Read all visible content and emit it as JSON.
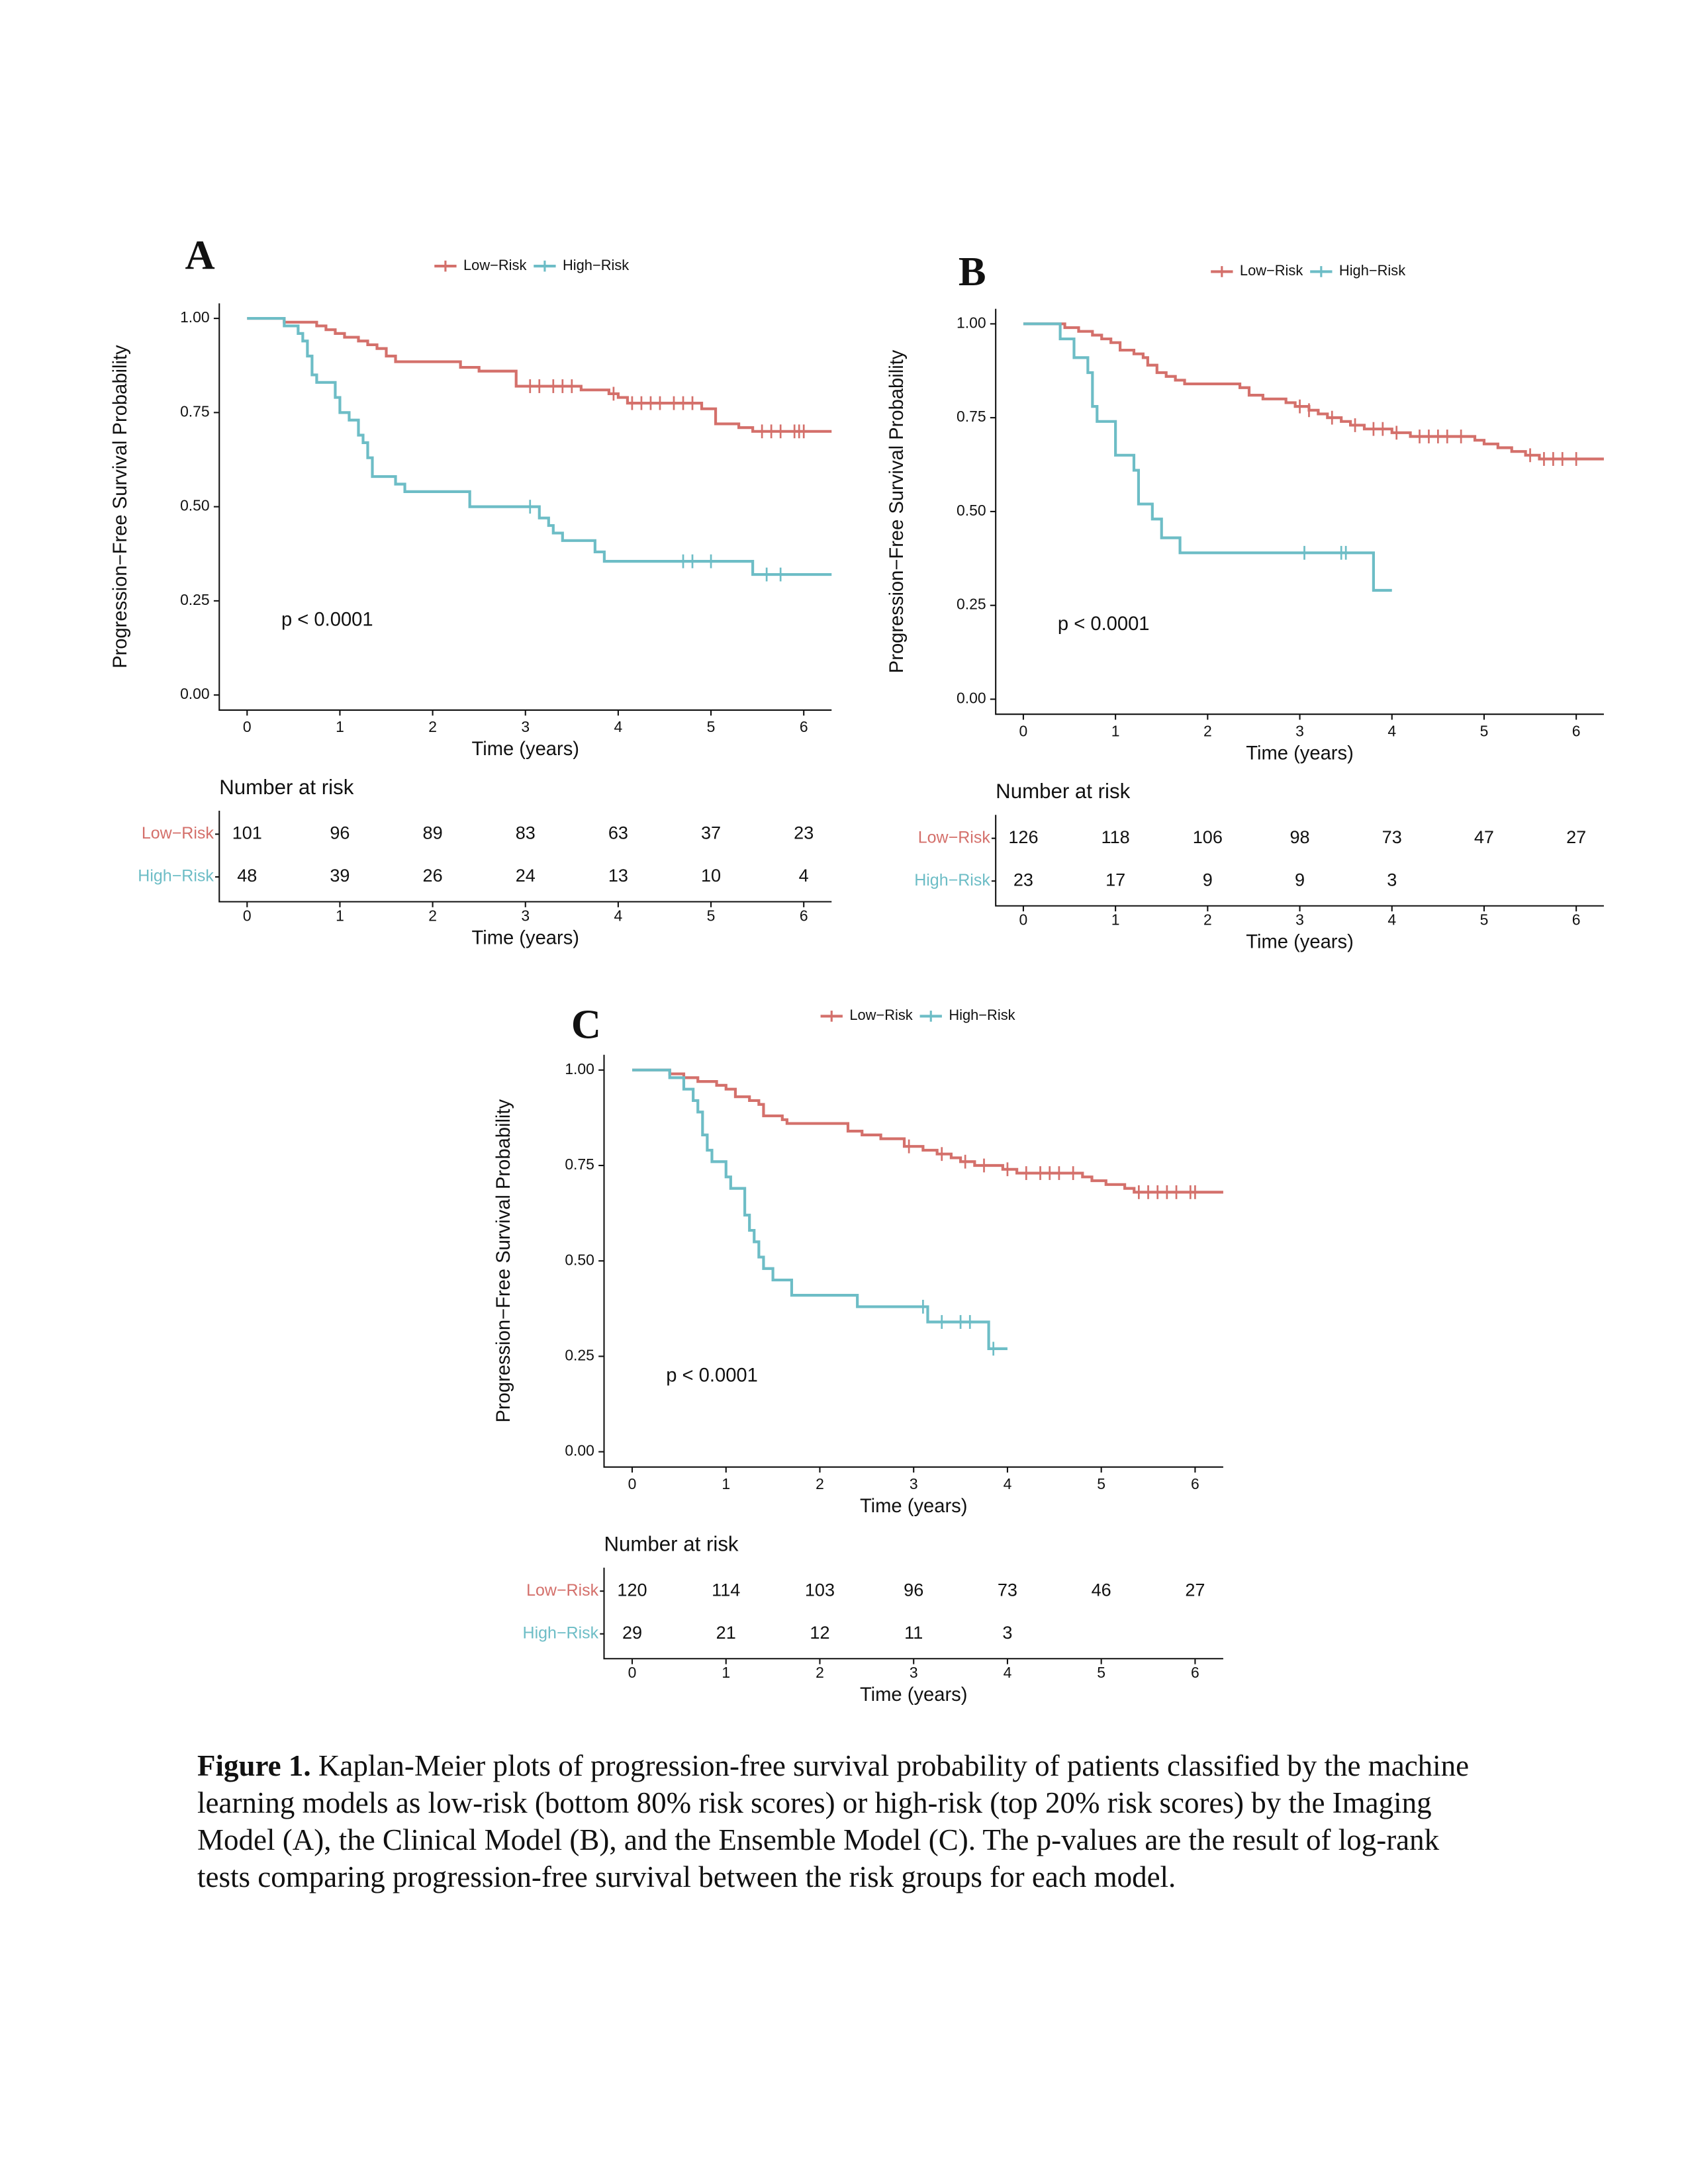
{
  "chart_data": [
    {
      "type": "step",
      "panel_label": "A",
      "p_value": "p < 0.0001",
      "xlabel": "Time (years)",
      "ylabel": "Progression−Free Survival Probability",
      "xlim": [
        -0.3,
        6.3
      ],
      "ylim": [
        -0.04,
        1.04
      ],
      "xticks": [
        0,
        1,
        2,
        3,
        4,
        5,
        6
      ],
      "yticks": [
        {
          "value": 0,
          "label": "0.00"
        },
        {
          "value": 0.25,
          "label": "0.25"
        },
        {
          "value": 0.5,
          "label": "0.50"
        },
        {
          "value": 0.75,
          "label": "0.75"
        },
        {
          "value": 1,
          "label": "1.00"
        }
      ],
      "series": [
        {
          "name": "Low−Risk",
          "color": "#d4706b",
          "x": [
            0,
            0.4,
            0.75,
            0.85,
            0.95,
            1.05,
            1.2,
            1.3,
            1.4,
            1.5,
            1.6,
            2.3,
            2.5,
            2.9,
            3.6,
            3.9,
            4.0,
            4.1,
            4.9,
            5.05,
            5.3,
            5.45,
            6.3
          ],
          "values": [
            1.0,
            0.99,
            0.98,
            0.97,
            0.96,
            0.95,
            0.94,
            0.93,
            0.92,
            0.9,
            0.885,
            0.87,
            0.86,
            0.82,
            0.81,
            0.8,
            0.79,
            0.775,
            0.76,
            0.72,
            0.71,
            0.7,
            0.7
          ],
          "censor_x": [
            3.05,
            3.15,
            3.3,
            3.4,
            3.5,
            3.95,
            4.15,
            4.25,
            4.35,
            4.45,
            4.6,
            4.7,
            4.8,
            5.55,
            5.65,
            5.75,
            5.9,
            5.95,
            6.0
          ],
          "censor_values": [
            0.82,
            0.82,
            0.82,
            0.82,
            0.82,
            0.8,
            0.775,
            0.775,
            0.775,
            0.775,
            0.775,
            0.775,
            0.775,
            0.7,
            0.7,
            0.7,
            0.7,
            0.7,
            0.7
          ]
        },
        {
          "name": "High−Risk",
          "color": "#6dbdc6",
          "x": [
            0,
            0.4,
            0.55,
            0.6,
            0.65,
            0.7,
            0.75,
            0.95,
            1.0,
            1.1,
            1.2,
            1.25,
            1.3,
            1.35,
            1.6,
            1.7,
            2.4,
            3.15,
            3.25,
            3.3,
            3.4,
            3.75,
            3.85,
            5.45,
            6.3
          ],
          "values": [
            1.0,
            0.98,
            0.96,
            0.94,
            0.9,
            0.85,
            0.83,
            0.79,
            0.75,
            0.73,
            0.69,
            0.67,
            0.63,
            0.58,
            0.56,
            0.54,
            0.5,
            0.47,
            0.45,
            0.43,
            0.41,
            0.38,
            0.355,
            0.32,
            0.32
          ],
          "censor_x": [
            3.05,
            4.7,
            4.8,
            5.0,
            5.6,
            5.75
          ],
          "censor_values": [
            0.5,
            0.355,
            0.355,
            0.355,
            0.32,
            0.32
          ]
        }
      ],
      "risk_table": {
        "title": "Number at risk",
        "xlabel": "Time (years)",
        "values": [
          [
            101,
            96,
            89,
            83,
            63,
            37,
            23
          ],
          [
            48,
            39,
            26,
            24,
            13,
            10,
            4
          ]
        ]
      }
    },
    {
      "type": "step",
      "panel_label": "B",
      "p_value": "p < 0.0001",
      "xlabel": "Time (years)",
      "ylabel": "Progression−Free Survival Probability",
      "xlim": [
        -0.3,
        6.3
      ],
      "ylim": [
        -0.04,
        1.04
      ],
      "xticks": [
        0,
        1,
        2,
        3,
        4,
        5,
        6
      ],
      "yticks": [
        {
          "value": 0,
          "label": "0.00"
        },
        {
          "value": 0.25,
          "label": "0.25"
        },
        {
          "value": 0.5,
          "label": "0.50"
        },
        {
          "value": 0.75,
          "label": "0.75"
        },
        {
          "value": 1,
          "label": "1.00"
        }
      ],
      "series": [
        {
          "name": "Low−Risk",
          "color": "#d4706b",
          "x": [
            0,
            0.45,
            0.6,
            0.75,
            0.85,
            0.95,
            1.05,
            1.2,
            1.3,
            1.35,
            1.45,
            1.55,
            1.65,
            1.75,
            2.35,
            2.45,
            2.6,
            2.85,
            2.95,
            3.1,
            3.2,
            3.3,
            3.45,
            3.55,
            3.7,
            4.0,
            4.2,
            4.9,
            5.0,
            5.15,
            5.3,
            5.45,
            5.6,
            6.3
          ],
          "values": [
            1.0,
            0.99,
            0.98,
            0.97,
            0.96,
            0.95,
            0.93,
            0.92,
            0.91,
            0.89,
            0.87,
            0.86,
            0.85,
            0.84,
            0.83,
            0.81,
            0.8,
            0.79,
            0.78,
            0.77,
            0.76,
            0.75,
            0.74,
            0.73,
            0.72,
            0.71,
            0.7,
            0.69,
            0.68,
            0.67,
            0.66,
            0.65,
            0.64,
            0.64
          ],
          "censor_x": [
            3.0,
            3.1,
            3.35,
            3.6,
            3.8,
            3.9,
            4.05,
            4.3,
            4.4,
            4.5,
            4.6,
            4.75,
            5.5,
            5.65,
            5.75,
            5.85,
            6.0
          ],
          "censor_values": [
            0.78,
            0.77,
            0.75,
            0.73,
            0.72,
            0.72,
            0.71,
            0.7,
            0.7,
            0.7,
            0.7,
            0.7,
            0.65,
            0.64,
            0.64,
            0.64,
            0.64
          ]
        },
        {
          "name": "High−Risk",
          "color": "#6dbdc6",
          "x": [
            0,
            0.4,
            0.55,
            0.7,
            0.75,
            0.8,
            1.0,
            1.2,
            1.25,
            1.4,
            1.5,
            1.7,
            3.8,
            4.0
          ],
          "values": [
            1.0,
            0.96,
            0.91,
            0.87,
            0.78,
            0.74,
            0.65,
            0.61,
            0.52,
            0.48,
            0.43,
            0.39,
            0.29,
            0.29
          ],
          "censor_x": [
            3.05,
            3.45,
            3.5
          ],
          "censor_values": [
            0.39,
            0.39,
            0.39
          ]
        }
      ],
      "risk_table": {
        "title": "Number at risk",
        "xlabel": "Time (years)",
        "values": [
          [
            126,
            118,
            106,
            98,
            73,
            47,
            27
          ],
          [
            23,
            17,
            9,
            9,
            3,
            null,
            null
          ]
        ]
      }
    },
    {
      "type": "step",
      "panel_label": "C",
      "p_value": "p < 0.0001",
      "xlabel": "Time (years)",
      "ylabel": "Progression−Free Survival Probability",
      "xlim": [
        -0.3,
        6.3
      ],
      "ylim": [
        -0.04,
        1.04
      ],
      "xticks": [
        0,
        1,
        2,
        3,
        4,
        5,
        6
      ],
      "yticks": [
        {
          "value": 0,
          "label": "0.00"
        },
        {
          "value": 0.25,
          "label": "0.25"
        },
        {
          "value": 0.5,
          "label": "0.50"
        },
        {
          "value": 0.75,
          "label": "0.75"
        },
        {
          "value": 1,
          "label": "1.00"
        }
      ],
      "series": [
        {
          "name": "Low−Risk",
          "color": "#d4706b",
          "x": [
            0,
            0.4,
            0.55,
            0.7,
            0.9,
            1.0,
            1.1,
            1.25,
            1.35,
            1.4,
            1.6,
            1.65,
            2.3,
            2.45,
            2.65,
            2.9,
            3.1,
            3.25,
            3.4,
            3.5,
            3.65,
            3.95,
            4.1,
            4.8,
            4.9,
            5.05,
            5.25,
            5.35,
            6.3
          ],
          "values": [
            1.0,
            0.99,
            0.98,
            0.97,
            0.96,
            0.95,
            0.93,
            0.92,
            0.91,
            0.88,
            0.87,
            0.86,
            0.84,
            0.83,
            0.82,
            0.8,
            0.79,
            0.78,
            0.77,
            0.76,
            0.75,
            0.74,
            0.73,
            0.72,
            0.71,
            0.7,
            0.69,
            0.68,
            0.68
          ],
          "censor_x": [
            2.95,
            3.3,
            3.55,
            3.75,
            4.0,
            4.2,
            4.35,
            4.45,
            4.55,
            4.7,
            5.4,
            5.5,
            5.6,
            5.7,
            5.8,
            5.95,
            6.0
          ],
          "censor_values": [
            0.8,
            0.78,
            0.76,
            0.75,
            0.74,
            0.73,
            0.73,
            0.73,
            0.73,
            0.73,
            0.68,
            0.68,
            0.68,
            0.68,
            0.68,
            0.68,
            0.68
          ]
        },
        {
          "name": "High−Risk",
          "color": "#6dbdc6",
          "x": [
            0,
            0.4,
            0.55,
            0.65,
            0.7,
            0.75,
            0.8,
            0.85,
            1.0,
            1.05,
            1.2,
            1.25,
            1.3,
            1.35,
            1.4,
            1.5,
            1.7,
            2.4,
            3.15,
            3.8,
            4.0
          ],
          "values": [
            1.0,
            0.98,
            0.95,
            0.92,
            0.89,
            0.83,
            0.79,
            0.76,
            0.72,
            0.69,
            0.62,
            0.58,
            0.55,
            0.51,
            0.48,
            0.45,
            0.41,
            0.38,
            0.34,
            0.27,
            0.27
          ],
          "censor_x": [
            3.1,
            3.3,
            3.5,
            3.6,
            3.85
          ],
          "censor_values": [
            0.38,
            0.34,
            0.34,
            0.34,
            0.27
          ]
        }
      ],
      "risk_table": {
        "title": "Number at risk",
        "xlabel": "Time (years)",
        "values": [
          [
            120,
            114,
            103,
            96,
            73,
            46,
            27
          ],
          [
            29,
            21,
            12,
            11,
            3,
            null,
            null
          ]
        ]
      }
    }
  ],
  "caption": {
    "label": "Figure 1.",
    "text": "Kaplan-Meier plots of progression-free survival probability of patients classified by the machine learning models as low-risk (bottom 80% risk scores) or high-risk (top 20% risk scores) by the Imaging Model (A), the Clinical Model (B), and the Ensemble Model (C). The p-values are the result of log-rank tests comparing progression-free survival between the risk groups for each model."
  }
}
